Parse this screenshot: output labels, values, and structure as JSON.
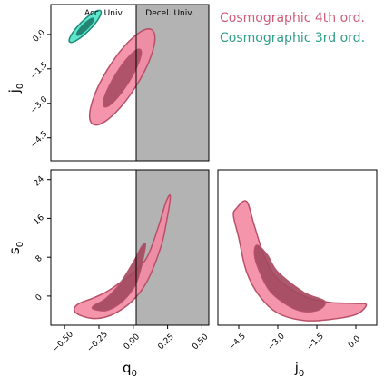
{
  "chart_data": {
    "type": "corner-contour",
    "region_labels": {
      "acc": "Acc. Univ.",
      "decel": "Decel. Univ."
    },
    "legend": [
      {
        "name": "Cosmographic 4th ord.",
        "color": "#d05c78"
      },
      {
        "name": "Cosmographic 3rd ord.",
        "color": "#2e9e88"
      }
    ],
    "colors": {
      "fourth_outer_fill": "#f48aa2",
      "fourth_inner_fill": "#a2485e",
      "fourth_edge": "#b8506a",
      "third_outer_fill": "#4ee3c6",
      "third_inner_fill": "#1f6e60",
      "third_edge": "#1c8a78",
      "decel_shade": "#b3b3b3"
    },
    "panels": [
      {
        "id": "q0-j0",
        "x_param": "q0",
        "y_param": "j0",
        "xlim": [
          -0.6,
          0.55
        ],
        "ylim": [
          -5.5,
          1.3
        ],
        "y_tick_labels": [
          "0.0",
          "−1.5",
          "−3.0",
          "−4.5"
        ],
        "y_tick_values": [
          0,
          -1.5,
          -3.0,
          -4.5
        ],
        "ylabel": "j",
        "ylabel_sub": "0",
        "deceleration_region": [
          0,
          0.55
        ],
        "contours": [
          {
            "series": "Cosmographic 4th ord.",
            "level": "outer",
            "center": [
              -0.08,
              -1.85
            ],
            "semi_axes": [
              0.405,
              0.12
            ],
            "angle": -58
          },
          {
            "series": "Cosmographic 4th ord.",
            "level": "inner",
            "center": [
              -0.08,
              -1.9
            ],
            "semi_axes": [
              0.245,
              0.055
            ],
            "angle": -58
          },
          {
            "series": "Cosmographic 3rd ord.",
            "level": "outer",
            "center": [
              -0.35,
              0.35
            ],
            "semi_axes": [
              0.16,
              0.04
            ],
            "angle": -45
          },
          {
            "series": "Cosmographic 3rd ord.",
            "level": "inner",
            "center": [
              -0.35,
              0.33
            ],
            "semi_axes": [
              0.085,
              0.02
            ],
            "angle": -45
          }
        ]
      },
      {
        "id": "q0-s0",
        "x_param": "q0",
        "y_param": "s0",
        "xlim": [
          -0.6,
          0.55
        ],
        "ylim": [
          -6,
          26
        ],
        "x_tick_labels": [
          "−0.50",
          "−0.25",
          "0.00",
          "0.25",
          "0.50"
        ],
        "x_tick_values": [
          -0.5,
          -0.25,
          0,
          0.25,
          0.5
        ],
        "y_tick_labels": [
          "0",
          "8",
          "16",
          "24"
        ],
        "y_tick_values": [
          0,
          8,
          16,
          24
        ],
        "xlabel": "q",
        "xlabel_sub": "0",
        "ylabel": "s",
        "ylabel_sub": "0",
        "deceleration_region": [
          0,
          0.55
        ],
        "contour_outer": [
          [
            -0.4,
            -3.8
          ],
          [
            -0.3,
            -4.6
          ],
          [
            -0.2,
            -4.3
          ],
          [
            -0.1,
            -3.0
          ],
          [
            0.0,
            -0.8
          ],
          [
            0.1,
            3.0
          ],
          [
            0.2,
            10.0
          ],
          [
            0.24,
            15.0
          ],
          [
            0.27,
            20.5
          ],
          [
            0.24,
            19.5
          ],
          [
            0.18,
            14.0
          ],
          [
            0.1,
            8.0
          ],
          [
            0.0,
            4.8
          ],
          [
            -0.1,
            2.7
          ],
          [
            -0.2,
            0.8
          ],
          [
            -0.3,
            -0.5
          ],
          [
            -0.4,
            -1.6
          ],
          [
            -0.43,
            -2.8
          ]
        ],
        "contour_inner": [
          [
            -0.28,
            -2.8
          ],
          [
            -0.2,
            -3.0
          ],
          [
            -0.1,
            -1.6
          ],
          [
            0.0,
            1.5
          ],
          [
            0.05,
            5.0
          ],
          [
            0.09,
            10.5
          ],
          [
            0.06,
            10.2
          ],
          [
            0.0,
            7.0
          ],
          [
            -0.1,
            2.5
          ],
          [
            -0.2,
            -0.5
          ],
          [
            -0.28,
            -1.8
          ],
          [
            -0.3,
            -2.4
          ]
        ]
      },
      {
        "id": "j0-s0",
        "x_param": "j0",
        "y_param": "s0",
        "xlim": [
          -5.3,
          0.8
        ],
        "ylim": [
          -6,
          26
        ],
        "x_tick_labels": [
          "−4.5",
          "−3.0",
          "−1.5",
          "0.0"
        ],
        "x_tick_values": [
          -4.5,
          -3.0,
          -1.5,
          0
        ],
        "xlabel": "j",
        "xlabel_sub": "0",
        "contour_outer": [
          [
            -4.6,
            18.0
          ],
          [
            -4.2,
            19.5
          ],
          [
            -3.9,
            14.5
          ],
          [
            -3.5,
            8.0
          ],
          [
            -3.0,
            3.5
          ],
          [
            -2.0,
            0.0
          ],
          [
            -1.0,
            -1.3
          ],
          [
            0.0,
            -1.5
          ],
          [
            0.4,
            -1.8
          ],
          [
            0.0,
            -3.8
          ],
          [
            -1.0,
            -4.8
          ],
          [
            -2.0,
            -5.0
          ],
          [
            -3.0,
            -3.5
          ],
          [
            -3.7,
            0.0
          ],
          [
            -4.2,
            5.0
          ],
          [
            -4.5,
            12.0
          ],
          [
            -4.7,
            16.5
          ]
        ],
        "contour_inner": [
          [
            -3.8,
            10.5
          ],
          [
            -3.4,
            8.5
          ],
          [
            -3.0,
            5.0
          ],
          [
            -2.0,
            0.8
          ],
          [
            -1.2,
            -1.0
          ],
          [
            -1.4,
            -2.8
          ],
          [
            -2.0,
            -3.2
          ],
          [
            -2.6,
            -2.0
          ],
          [
            -3.3,
            1.0
          ],
          [
            -3.7,
            5.0
          ],
          [
            -3.9,
            8.5
          ]
        ]
      }
    ]
  }
}
